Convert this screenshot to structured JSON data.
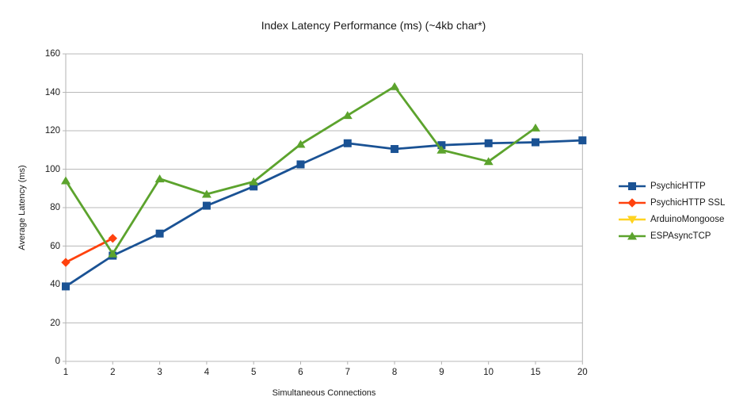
{
  "chart_data": {
    "type": "line",
    "title": "Index Latency Performance (ms) (~4kb char*)",
    "xlabel": "Simultaneous Connections",
    "ylabel": "Average Latency (ms)",
    "categories": [
      "1",
      "2",
      "3",
      "4",
      "5",
      "6",
      "7",
      "8",
      "9",
      "10",
      "15",
      "20"
    ],
    "y_ticks": [
      0,
      20,
      40,
      60,
      80,
      100,
      120,
      140,
      160
    ],
    "ylim": [
      0,
      160
    ],
    "grid": "horizontal",
    "legend_position": "right",
    "colors": {
      "grid": "#b9b9b9",
      "axis": "#b3b3b3",
      "text": "#1a1a1a"
    },
    "series": [
      {
        "name": "PsychicHTTP",
        "color": "#1a5294",
        "marker": "square",
        "values": [
          39,
          55,
          66.5,
          81,
          91,
          102.5,
          113.5,
          110.5,
          112.5,
          113.5,
          114,
          115
        ]
      },
      {
        "name": "PsychicHTTP SSL",
        "color": "#ff420e",
        "marker": "diamond",
        "values": [
          51.5,
          64,
          null,
          null,
          null,
          null,
          null,
          null,
          null,
          null,
          null,
          null
        ]
      },
      {
        "name": "ArduinoMongoose",
        "color": "#ffd320",
        "marker": "triangle-down",
        "values": [
          null,
          null,
          null,
          null,
          null,
          null,
          null,
          null,
          null,
          null,
          null,
          null
        ]
      },
      {
        "name": "ESPAsyncTCP",
        "color": "#5ca32d",
        "marker": "triangle-up",
        "values": [
          94,
          56,
          95,
          87,
          93.5,
          113,
          128,
          143,
          110,
          104,
          121.5,
          null
        ]
      }
    ]
  }
}
